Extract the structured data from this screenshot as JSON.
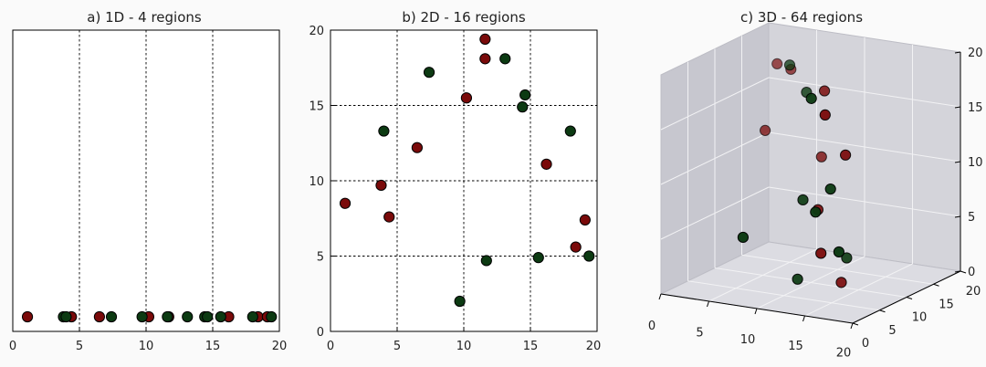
{
  "colors": {
    "red": "#7a0a0a",
    "green": "#0c3a12",
    "pane": "#d4d4da",
    "pane_side": "#c7c7cf",
    "floor": "#dcdce2"
  },
  "chart_data": [
    {
      "type": "scatter",
      "title": "a) 1D - 4 regions",
      "xlim": [
        0,
        20
      ],
      "xticks": [
        "0",
        "5",
        "10",
        "15",
        "20"
      ],
      "grid_x": [
        5,
        10,
        15
      ],
      "series": [
        {
          "color": "red",
          "x": [
            1.1,
            4.4,
            6.5,
            10.2,
            11.7,
            16.2,
            18.4,
            19.1
          ]
        },
        {
          "color": "green",
          "x": [
            3.8,
            4.0,
            7.4,
            9.7,
            11.6,
            13.1,
            14.4,
            14.6,
            15.6,
            18.0,
            19.4
          ]
        }
      ]
    },
    {
      "type": "scatter",
      "title": "b) 2D - 16 regions",
      "xlim": [
        0,
        20
      ],
      "ylim": [
        0,
        20
      ],
      "xticks": [
        "0",
        "5",
        "10",
        "15",
        "20"
      ],
      "yticks": [
        "0",
        "5",
        "10",
        "15",
        "20"
      ],
      "grid": [
        5,
        10,
        15
      ],
      "series": [
        {
          "color": "red",
          "points": [
            [
              1.1,
              8.5
            ],
            [
              3.8,
              9.7
            ],
            [
              4.4,
              7.6
            ],
            [
              6.5,
              12.2
            ],
            [
              10.2,
              15.5
            ],
            [
              11.6,
              19.4
            ],
            [
              11.6,
              18.1
            ],
            [
              16.2,
              11.1
            ],
            [
              18.4,
              5.6
            ],
            [
              19.1,
              7.4
            ]
          ]
        },
        {
          "color": "green",
          "points": [
            [
              4.0,
              13.3
            ],
            [
              7.4,
              17.2
            ],
            [
              9.7,
              2.0
            ],
            [
              11.7,
              4.7
            ],
            [
              13.1,
              18.1
            ],
            [
              14.4,
              14.9
            ],
            [
              14.6,
              15.7
            ],
            [
              15.6,
              4.9
            ],
            [
              18.0,
              13.3
            ],
            [
              19.4,
              5.0
            ]
          ]
        }
      ]
    },
    {
      "type": "scatter3d",
      "title": "c) 3D - 64 regions",
      "xticks": [
        "0",
        "5",
        "10",
        "15",
        "20"
      ],
      "yticks": [
        "0",
        "5",
        "10",
        "15",
        "20"
      ],
      "zticks": [
        "0",
        "5",
        "10",
        "15",
        "20"
      ],
      "series": [
        {
          "color": "red",
          "points": [
            [
              2,
              18,
              17
            ],
            [
              4,
              17,
              17
            ],
            [
              3,
              14,
              12
            ],
            [
              10,
              12,
              11
            ],
            [
              12,
              9,
              18
            ],
            [
              16,
              2,
              18
            ],
            [
              17,
              4,
              14
            ],
            [
              13,
              6,
              8
            ],
            [
              15,
              3,
              5
            ],
            [
              16,
              5,
              2
            ]
          ]
        },
        {
          "color": "green",
          "points": [
            [
              5,
              15,
              18
            ],
            [
              9,
              11,
              17
            ],
            [
              14,
              3,
              19
            ],
            [
              16,
              3,
              11
            ],
            [
              15,
              2,
              9
            ],
            [
              12,
              5,
              9
            ],
            [
              16,
              6,
              4
            ],
            [
              18,
              1,
              6
            ],
            [
              8,
              1,
              6
            ],
            [
              12,
              4,
              2
            ]
          ]
        }
      ]
    }
  ]
}
